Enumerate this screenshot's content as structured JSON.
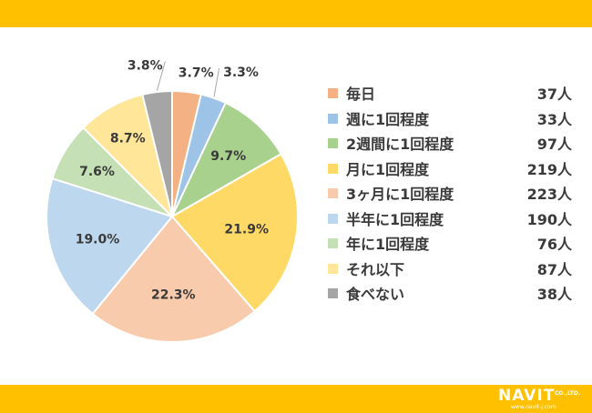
{
  "chart_data": {
    "type": "pie",
    "title": "",
    "categories": [
      "毎日",
      "週に1回程度",
      "2週間に1回程度",
      "月に1回程度",
      "3ヶ月に1回程度",
      "半年に1回程度",
      "年に1回程度",
      "それ以下",
      "食べない"
    ],
    "values": [
      37,
      33,
      97,
      219,
      223,
      190,
      76,
      87,
      38
    ],
    "percent_labels": [
      "3.7%",
      "3.3%",
      "9.7%",
      "21.9%",
      "22.3%",
      "19.0%",
      "7.6%",
      "8.7%",
      "3.8%"
    ],
    "count_labels": [
      "37人",
      "33人",
      "97人",
      "219人",
      "223人",
      "190人",
      "76人",
      "87人",
      "38人"
    ],
    "colors": [
      "#F4B183",
      "#9DC3E6",
      "#A9D18E",
      "#FFD966",
      "#F8CBAD",
      "#BDD7EE",
      "#C5E0B4",
      "#FFE699",
      "#A5A5A5"
    ],
    "start_angle_deg": 0,
    "direction": "clockwise",
    "legend_position": "right"
  },
  "branding": {
    "logo_text": "NAVIT",
    "logo_suffix": "CO.,LTD.",
    "logo_url": "www.navit-j.com",
    "band_color": "#FFC000"
  }
}
